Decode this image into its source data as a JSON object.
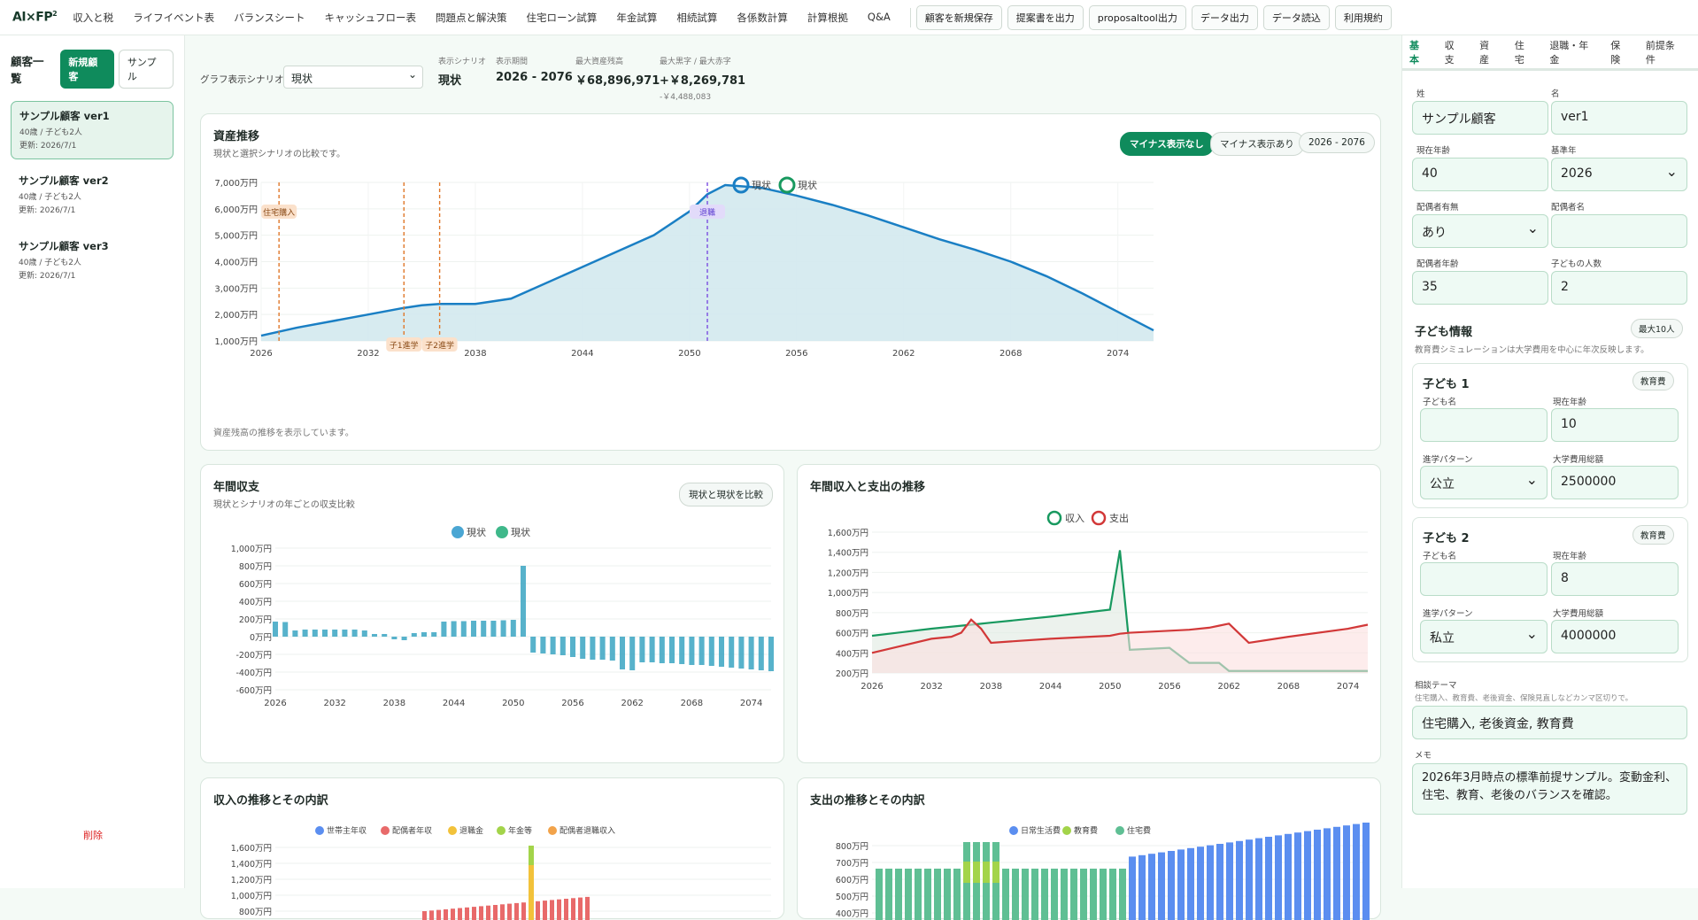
{
  "topbar": {
    "logo": "AI×FP",
    "logo_sup": "2",
    "nav": [
      "収入と税",
      "ライフイベント表",
      "バランスシート",
      "キャッシュフロー表",
      "問題点と解決策",
      "住宅ローン試算",
      "年金試算",
      "相続試算",
      "各係数計算",
      "計算根拠",
      "Q&A"
    ],
    "buttons": [
      "顧客を新規保存",
      "提案書を出力",
      "proposaltool出力",
      "データ出力",
      "データ読込",
      "利用規約"
    ]
  },
  "sidebar": {
    "title": "顧客一覧",
    "new_btn": "新規顧客",
    "sample_btn": "サンプル",
    "clients": [
      {
        "name": "サンプル顧客 ver1",
        "info": "40歳 / 子ども2人",
        "updated": "更新: 2026/7/1"
      },
      {
        "name": "サンプル顧客 ver2",
        "info": "40歳 / 子ども2人",
        "updated": "更新: 2026/7/1"
      },
      {
        "name": "サンプル顧客 ver3",
        "info": "40歳 / 子ども2人",
        "updated": "更新: 2026/7/1"
      }
    ],
    "delete": "削除"
  },
  "summary": {
    "scenario_label": "グラフ表示シナリオ",
    "scenario_value": "現状",
    "disp_label": "表示シナリオ",
    "disp_value": "現状",
    "period_label": "表示期間",
    "period_value": "2026 - 2076",
    "max_label": "最大資産残高",
    "max_value": "￥68,896,971",
    "surplus_label": "最大黒字 / 最大赤字",
    "surplus_value": "+￥8,269,781",
    "deficit_value": "-￥4,488,083"
  },
  "asset_card": {
    "title": "資産推移",
    "subtitle": "現状と選択シナリオの比較です。",
    "btn_no_minus": "マイナス表示なし",
    "btn_minus": "マイナス表示あり",
    "btn_range": "2026 - 2076",
    "legend": [
      "現状",
      "現状"
    ],
    "events": [
      "住宅購入",
      "子1進学",
      "子2進学",
      "退職"
    ],
    "note": "資産残高の推移を表示しています。",
    "yticks": [
      "7,000万円",
      "6,000万円",
      "5,000万円",
      "4,000万円",
      "3,000万円",
      "2,000万円",
      "1,000万円"
    ],
    "xticks": [
      "2026",
      "2032",
      "2038",
      "2044",
      "2050",
      "2056",
      "2062",
      "2068",
      "2074"
    ]
  },
  "cf_card": {
    "title": "年間収支",
    "subtitle": "現状とシナリオの年ごとの収支比較",
    "btn": "現状と現状を比較",
    "legend": [
      "現状",
      "現状"
    ],
    "yticks": [
      "1,000万円",
      "800万円",
      "600万円",
      "400万円",
      "200万円",
      "0万円",
      "-200万円",
      "-400万円",
      "-600万円"
    ],
    "xticks": [
      "2026",
      "2032",
      "2038",
      "2044",
      "2050",
      "2056",
      "2062",
      "2068",
      "2074"
    ]
  },
  "ie_card": {
    "title": "年間収入と支出の推移",
    "legend": [
      "収入",
      "支出"
    ],
    "yticks": [
      "1,600万円",
      "1,400万円",
      "1,200万円",
      "1,000万円",
      "800万円",
      "600万円",
      "400万円",
      "200万円"
    ],
    "xticks": [
      "2026",
      "2032",
      "2038",
      "2044",
      "2050",
      "2056",
      "2062",
      "2068",
      "2074"
    ]
  },
  "inc_card": {
    "title": "収入の推移とその内訳",
    "legend": [
      "世帯主年収",
      "配偶者年収",
      "退職金",
      "年金等",
      "配偶者退職収入"
    ],
    "yticks": [
      "1,600万円",
      "1,400万円",
      "1,200万円",
      "1,000万円",
      "800万円"
    ]
  },
  "exp_card": {
    "title": "支出の推移とその内訳",
    "legend": [
      "日常生活費",
      "教育費",
      "住宅費"
    ],
    "yticks": [
      "800万円",
      "700万円",
      "600万円",
      "500万円",
      "400万円"
    ]
  },
  "chart_data": [
    {
      "type": "area",
      "title": "資産推移",
      "ylim": [
        1000,
        7000
      ],
      "x": [
        2026,
        2028,
        2030,
        2032,
        2034,
        2035,
        2036,
        2037,
        2038,
        2040,
        2044,
        2048,
        2050,
        2051,
        2052,
        2054,
        2056,
        2058,
        2060,
        2062,
        2064,
        2066,
        2068,
        2070,
        2072,
        2074,
        2076
      ],
      "series": [
        {
          "name": "現状",
          "values": [
            1200,
            1500,
            1750,
            2000,
            2250,
            2350,
            2400,
            2400,
            2400,
            2600,
            3800,
            5000,
            5900,
            6550,
            6900,
            6800,
            6500,
            6150,
            5750,
            5300,
            4850,
            4450,
            4000,
            3450,
            2800,
            2100,
            1400
          ]
        }
      ],
      "events": [
        {
          "label": "住宅購入",
          "x": 2027
        },
        {
          "label": "子1進学",
          "x": 2034
        },
        {
          "label": "子2進学",
          "x": 2036
        },
        {
          "label": "退職",
          "x": 2051
        }
      ]
    },
    {
      "type": "bar",
      "title": "年間収支",
      "ylim": [
        -600,
        1000
      ],
      "x": [
        2026,
        2027,
        2028,
        2029,
        2030,
        2031,
        2032,
        2033,
        2034,
        2035,
        2036,
        2037,
        2038,
        2039,
        2040,
        2041,
        2042,
        2043,
        2044,
        2045,
        2046,
        2047,
        2048,
        2049,
        2050,
        2051,
        2052,
        2053,
        2054,
        2055,
        2056,
        2057,
        2058,
        2059,
        2060,
        2061,
        2062,
        2063,
        2064,
        2065,
        2066,
        2067,
        2068,
        2069,
        2070,
        2071,
        2072,
        2073,
        2074,
        2075,
        2076
      ],
      "series": [
        {
          "name": "現状",
          "values": [
            170,
            165,
            70,
            80,
            80,
            80,
            80,
            80,
            80,
            70,
            30,
            30,
            -30,
            -40,
            40,
            50,
            50,
            170,
            175,
            175,
            180,
            180,
            180,
            185,
            190,
            800,
            -180,
            -190,
            -200,
            -210,
            -230,
            -250,
            -260,
            -260,
            -270,
            -370,
            -380,
            -290,
            -290,
            -300,
            -300,
            -310,
            -320,
            -320,
            -330,
            -340,
            -350,
            -360,
            -370,
            -380,
            -390
          ]
        }
      ]
    },
    {
      "type": "line",
      "title": "年間収入と支出の推移",
      "ylim": [
        200,
        1600
      ],
      "x": [
        2026,
        2032,
        2034,
        2035,
        2036,
        2037,
        2038,
        2044,
        2050,
        2051,
        2052,
        2054,
        2056,
        2058,
        2060,
        2061,
        2062,
        2064,
        2068,
        2074,
        2076
      ],
      "series": [
        {
          "name": "収入",
          "values": [
            570,
            640,
            660,
            670,
            680,
            690,
            700,
            760,
            830,
            1420,
            430,
            440,
            450,
            300,
            300,
            300,
            220,
            220,
            220,
            220,
            220
          ]
        },
        {
          "name": "支出",
          "values": [
            400,
            540,
            560,
            600,
            730,
            640,
            500,
            540,
            570,
            590,
            600,
            610,
            620,
            630,
            650,
            670,
            690,
            500,
            560,
            640,
            680
          ]
        }
      ]
    }
  ],
  "panel": {
    "tabs": [
      "基本",
      "収支",
      "資産",
      "住宅",
      "退職・年金",
      "保険",
      "前提条件"
    ],
    "sei_label": "姓",
    "sei": "サンプル顧客",
    "mei_label": "名",
    "mei": "ver1",
    "age_label": "現在年齢",
    "age": "40",
    "base_label": "基準年",
    "base": "2026",
    "spouse_label": "配偶者有無",
    "spouse": "あり",
    "spouse_name_label": "配偶者名",
    "spouse_name": "",
    "spouse_age_label": "配偶者年齢",
    "spouse_age": "35",
    "kids_label": "子どもの人数",
    "kids": "2",
    "child_sec": "子ども情報",
    "child_max": "最大10人",
    "child_note": "教育費シミュレーションは大学費用を中心に年次反映します。",
    "children": [
      {
        "title": "子ども 1",
        "edu_btn": "教育費",
        "name_label": "子ども名",
        "name": "",
        "age_label": "現在年齢",
        "age": "10",
        "path_label": "進学パターン",
        "path": "公立",
        "cost_label": "大学費用総額",
        "cost": "2500000"
      },
      {
        "title": "子ども 2",
        "edu_btn": "教育費",
        "name_label": "子ども名",
        "name": "",
        "age_label": "現在年齢",
        "age": "8",
        "path_label": "進学パターン",
        "path": "私立",
        "cost_label": "大学費用総額",
        "cost": "4000000"
      }
    ],
    "theme_label": "相談テーマ",
    "theme_note": "住宅購入、教育費、老後資金、保険見直しなどカンマ区切りで。",
    "theme": "住宅購入, 老後資金, 教育費",
    "memo_label": "メモ",
    "memo": "2026年3月時点の標準前提サンプル。変動金利、住宅、教育、老後のバランスを確認。"
  },
  "colors": {
    "accent": "#0f8b5c",
    "asset_line": "#1a7fc4",
    "income": "#18995f",
    "expense": "#d23838",
    "bar": "#3aa4c2"
  }
}
